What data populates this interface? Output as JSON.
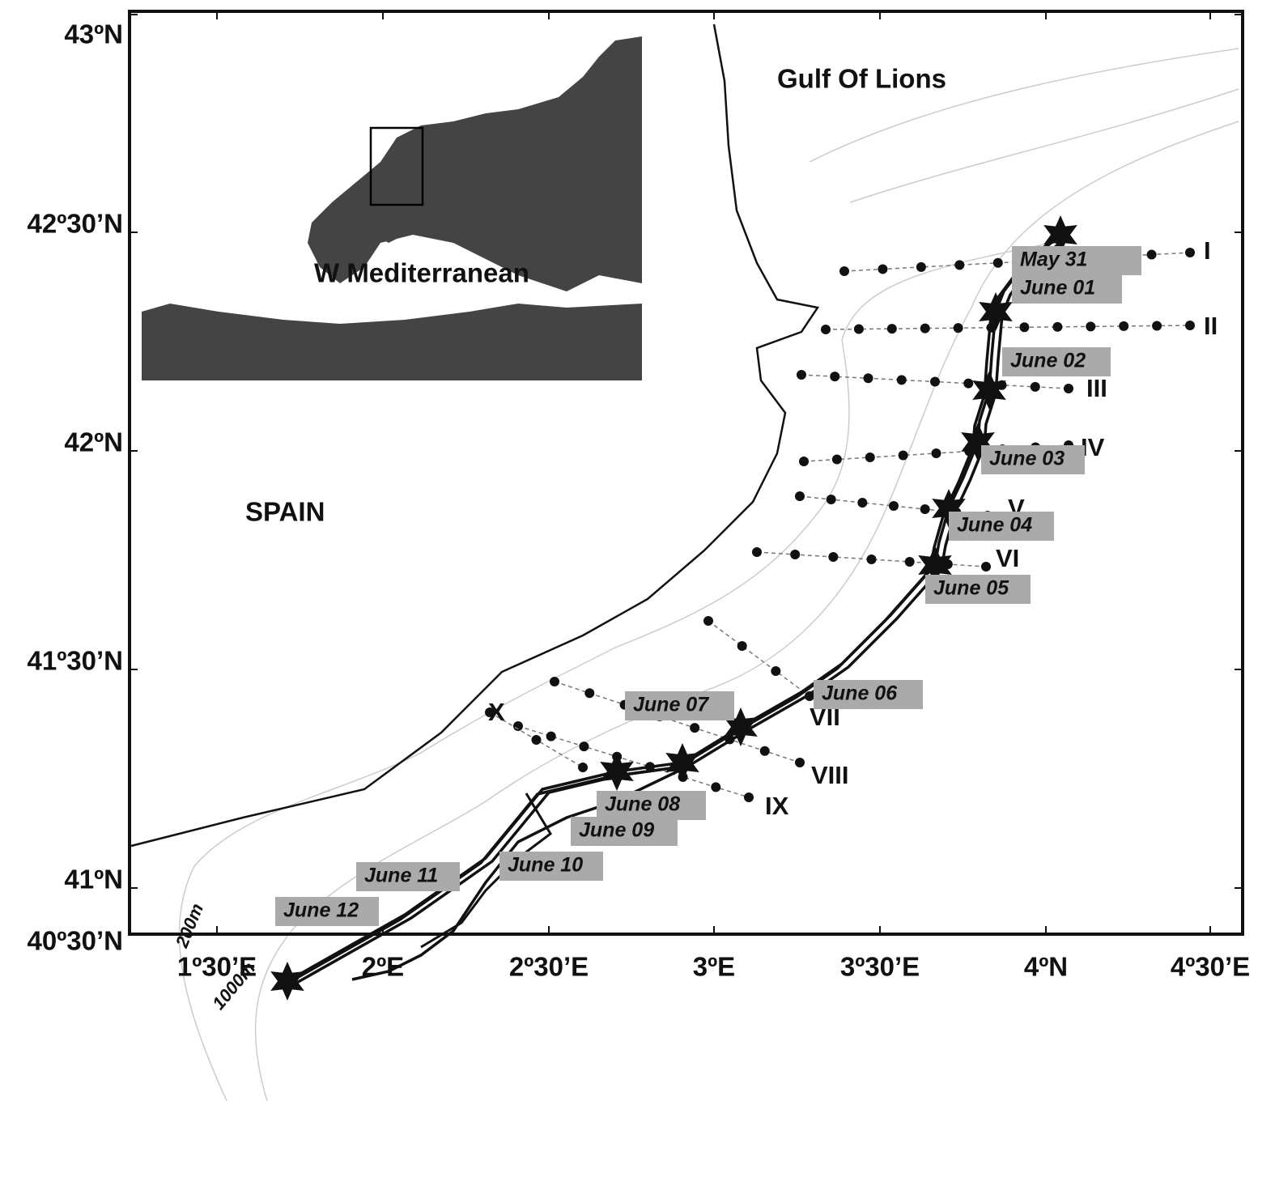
{
  "axes": {
    "lat_labels": [
      "43ºN",
      "42º30’N",
      "42ºN",
      "41º30’N",
      "41ºN",
      "40º30’N"
    ],
    "lon_labels": [
      "1º30’E",
      "2ºE",
      "2º30’E",
      "3ºE",
      "3º30’E",
      "4ºN",
      "4º30’E"
    ]
  },
  "places": [
    "Gulf Of Lions",
    "W Mediterranean",
    "SPAIN"
  ],
  "isobaths": [
    "200m",
    "1000m"
  ],
  "transects": [
    "I",
    "II",
    "III",
    "IV",
    "V",
    "VI",
    "VII",
    "VIII",
    "IX",
    "X"
  ],
  "dates": [
    "May 31",
    "June 01",
    "June 02",
    "June 03",
    "June 04",
    "June 05",
    "June 06",
    "June 07",
    "June 08",
    "June 09",
    "June 10",
    "June 11",
    "June 12"
  ]
}
